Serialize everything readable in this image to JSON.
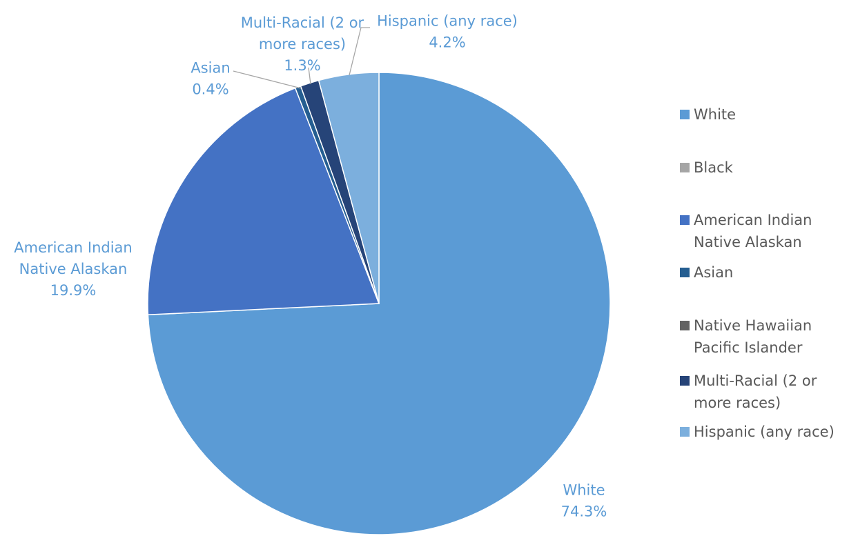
{
  "chart_data": {
    "type": "pie",
    "title": "",
    "legend_position": "right",
    "series": [
      {
        "values": [
          74.3,
          0.0,
          19.9,
          0.4,
          0.0,
          1.3,
          4.2
        ],
        "labels": [
          "White",
          "Black",
          "American Indian Native Alaskan",
          "Asian",
          "Native Hawaiian Pacific Islander",
          "Multi-Racial (2 or more races)",
          "Hispanic (any race)"
        ]
      }
    ],
    "slices": [
      {
        "name": "White",
        "value": 74.3,
        "value_label": "74.3%",
        "color": "#5b9bd5",
        "label_color": "#5b9bd5",
        "label_lines": [
          "White",
          "74.3%"
        ]
      },
      {
        "name": "Black",
        "value": 0.0,
        "value_label": "",
        "color": "#a5a5a5",
        "label_color": "#a5a5a5",
        "label_lines": []
      },
      {
        "name": "American Indian Native Alaskan",
        "value": 19.9,
        "value_label": "19.9%",
        "color": "#4472c4",
        "label_color": "#4472c4",
        "label_lines": [
          "American Indian",
          "Native Alaskan",
          "19.9%"
        ]
      },
      {
        "name": "Asian",
        "value": 0.4,
        "value_label": "0.4%",
        "color": "#255e91",
        "label_color": "#255e91",
        "label_lines": [
          "Asian",
          "0.4%"
        ]
      },
      {
        "name": "Native Hawaiian Pacific Islander",
        "value": 0.0,
        "value_label": "",
        "color": "#636363",
        "label_color": "#636363",
        "label_lines": []
      },
      {
        "name": "Multi-Racial (2 or more races)",
        "value": 1.3,
        "value_label": "1.3%",
        "color": "#264478",
        "label_color": "#264478",
        "label_lines": [
          "Multi-Racial (2 or",
          "more races)",
          "1.3%"
        ]
      },
      {
        "name": "Hispanic (any race)",
        "value": 4.2,
        "value_label": "4.2%",
        "color": "#7cafdd",
        "label_color": "#7cafdd",
        "label_lines": [
          "Hispanic (any race)",
          "4.2%"
        ]
      }
    ],
    "legend": [
      {
        "label": "White",
        "color": "#5b9bd5"
      },
      {
        "label": "Black",
        "color": "#a5a5a5"
      },
      {
        "label": "American Indian\nNative Alaskan",
        "color": "#4472c4"
      },
      {
        "label": "Asian",
        "color": "#255e91"
      },
      {
        "label": "Native Hawaiian\nPacific Islander",
        "color": "#636363"
      },
      {
        "label": "Multi-Racial (2 or\nmore races)",
        "color": "#264478"
      },
      {
        "label": "Hispanic (any race)",
        "color": "#7cafdd"
      }
    ]
  }
}
